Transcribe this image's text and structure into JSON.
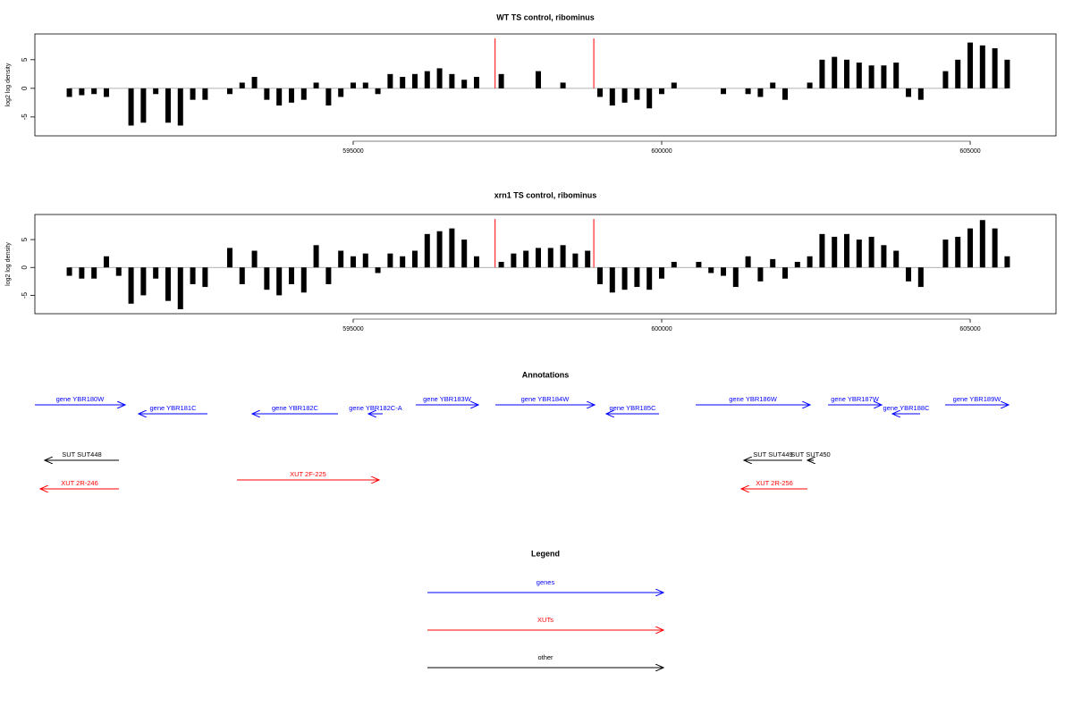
{
  "chart_data": [
    {
      "type": "needle",
      "title": "WT TS control, ribominus",
      "y_label": "log2 log density",
      "x": [
        590400,
        590600,
        590800,
        591000,
        591200,
        591400,
        591600,
        591800,
        592000,
        592200,
        592400,
        592600,
        592800,
        593000,
        593200,
        593400,
        593600,
        593800,
        594000,
        594200,
        594400,
        594600,
        594800,
        595000,
        595200,
        595400,
        595600,
        595800,
        596000,
        596200,
        596400,
        596600,
        596800,
        597000,
        597200,
        597400,
        597600,
        597800,
        598000,
        598200,
        598400,
        598600,
        598800,
        599000,
        599200,
        599400,
        599600,
        599800,
        600000,
        600200,
        600400,
        600600,
        600800,
        601000,
        601200,
        601400,
        601600,
        601800,
        602000,
        602200,
        602400,
        602600,
        602800,
        603000,
        603200,
        603400,
        603600,
        603800,
        604000,
        604200,
        604400,
        604600,
        604800,
        605000,
        605200,
        605400,
        605600
      ],
      "values": [
        -1.5,
        -1.2,
        -1,
        -1.5,
        null,
        -6.5,
        -6,
        -1,
        -6,
        -6.5,
        -2,
        -2,
        null,
        -1,
        1,
        2,
        -2,
        -3,
        -2.5,
        -2,
        1,
        -3,
        -1.5,
        1,
        1,
        -1,
        2.5,
        2,
        2.5,
        3,
        3.5,
        2.5,
        1.5,
        2,
        null,
        2.5,
        null,
        null,
        3,
        null,
        1,
        null,
        null,
        -1.5,
        -3,
        -2.5,
        -2,
        -3.5,
        -1,
        1,
        null,
        null,
        null,
        -1,
        null,
        -1,
        -1.5,
        1,
        -2,
        null,
        1,
        5,
        5.5,
        5,
        4.5,
        4,
        4,
        4.5,
        -1.5,
        -2,
        null,
        3,
        5,
        8,
        7.5,
        7,
        5
      ],
      "color": "#000000",
      "markers": [
        597300,
        598900
      ],
      "marker_color": "#ff0000",
      "xlim": [
        589841,
        606391
      ],
      "xticks": [
        595000,
        600000,
        605000
      ],
      "ylim": [
        -8.3,
        9.5
      ],
      "yticks": [
        -5,
        0,
        5
      ]
    },
    {
      "type": "needle",
      "title": "xrn1 TS control, ribominus",
      "y_label": "log2 log density",
      "x": [
        590400,
        590600,
        590800,
        591000,
        591200,
        591400,
        591600,
        591800,
        592000,
        592200,
        592400,
        592600,
        592800,
        593000,
        593200,
        593400,
        593600,
        593800,
        594000,
        594200,
        594400,
        594600,
        594800,
        595000,
        595200,
        595400,
        595600,
        595800,
        596000,
        596200,
        596400,
        596600,
        596800,
        597000,
        597200,
        597400,
        597600,
        597800,
        598000,
        598200,
        598400,
        598600,
        598800,
        599000,
        599200,
        599400,
        599600,
        599800,
        600000,
        600200,
        600400,
        600600,
        600800,
        601000,
        601200,
        601400,
        601600,
        601800,
        602000,
        602200,
        602400,
        602600,
        602800,
        603000,
        603200,
        603400,
        603600,
        603800,
        604000,
        604200,
        604400,
        604600,
        604800,
        605000,
        605200,
        605400,
        605600
      ],
      "values": [
        -1.5,
        -2,
        -2,
        2,
        -1.5,
        -6.5,
        -5,
        -2,
        -6,
        -7.5,
        -3,
        -3.5,
        null,
        3.5,
        -3,
        3,
        -4,
        -5,
        -3,
        -4.5,
        4,
        -3,
        3,
        2,
        2.5,
        -1,
        2.5,
        2,
        3,
        6,
        6.5,
        7,
        5,
        2,
        null,
        1,
        2.5,
        3,
        3.5,
        3.5,
        4,
        2.5,
        3,
        -3,
        -4.5,
        -4,
        -3.5,
        -4,
        -2,
        1,
        null,
        1,
        -1,
        -1.5,
        -3.5,
        2,
        -2.5,
        1.5,
        -2,
        1,
        2,
        6,
        5.5,
        6,
        5,
        5.5,
        4,
        3,
        -2.5,
        -3.5,
        null,
        5,
        5.5,
        7,
        8.5,
        7,
        2
      ],
      "color": "#000000",
      "markers": [
        597300,
        598900
      ],
      "marker_color": "#ff0000",
      "xlim": [
        589841,
        606391
      ],
      "xticks": [
        595000,
        600000,
        605000
      ],
      "ylim": [
        -8.3,
        9.5
      ],
      "yticks": [
        -5,
        0,
        5
      ]
    }
  ],
  "annotations": {
    "title": "Annotations",
    "legend_title": "Legend",
    "groups": [
      {
        "name": "genes",
        "color": "#0000ff",
        "features": [
          {
            "label": "gene YBR180W",
            "from": 589841,
            "to": 591304
          },
          {
            "label": "gene YBR181C",
            "from": 592638,
            "to": 591522
          },
          {
            "label": "gene YBR182C",
            "from": 594754,
            "to": 593362
          },
          {
            "label": "gene YBR182C-A",
            "from": 595478,
            "to": 595246
          },
          {
            "label": "gene YBR183W",
            "from": 596014,
            "to": 597029
          },
          {
            "label": "gene YBR184W",
            "from": 597304,
            "to": 598913
          },
          {
            "label": "gene YBR185C",
            "from": 599957,
            "to": 599101
          },
          {
            "label": "gene YBR186W",
            "from": 600551,
            "to": 602406
          },
          {
            "label": "gene YBR187W",
            "from": 602696,
            "to": 603565
          },
          {
            "label": "gene YBR188C",
            "from": 604188,
            "to": 603739
          },
          {
            "label": "gene YBR189W",
            "from": 604594,
            "to": 605623
          }
        ]
      },
      {
        "name": "XUTs",
        "color": "#ff0000",
        "features": [
          {
            "label": "XUT 2R-246",
            "from": 591203,
            "to": 589928
          },
          {
            "label": "XUT 2F-225",
            "from": 593116,
            "to": 595420
          },
          {
            "label": "XUT 2R-256",
            "from": 602362,
            "to": 601290
          }
        ]
      },
      {
        "name": "other",
        "color": "#000000",
        "features": [
          {
            "label": "SUT SUT448",
            "from": 591203,
            "to": 590000
          },
          {
            "label": "SUT SUT449",
            "from": 602275,
            "to": 601333
          },
          {
            "label": "SUT SUT450",
            "from": 602464,
            "to": 602362
          }
        ]
      }
    ]
  }
}
